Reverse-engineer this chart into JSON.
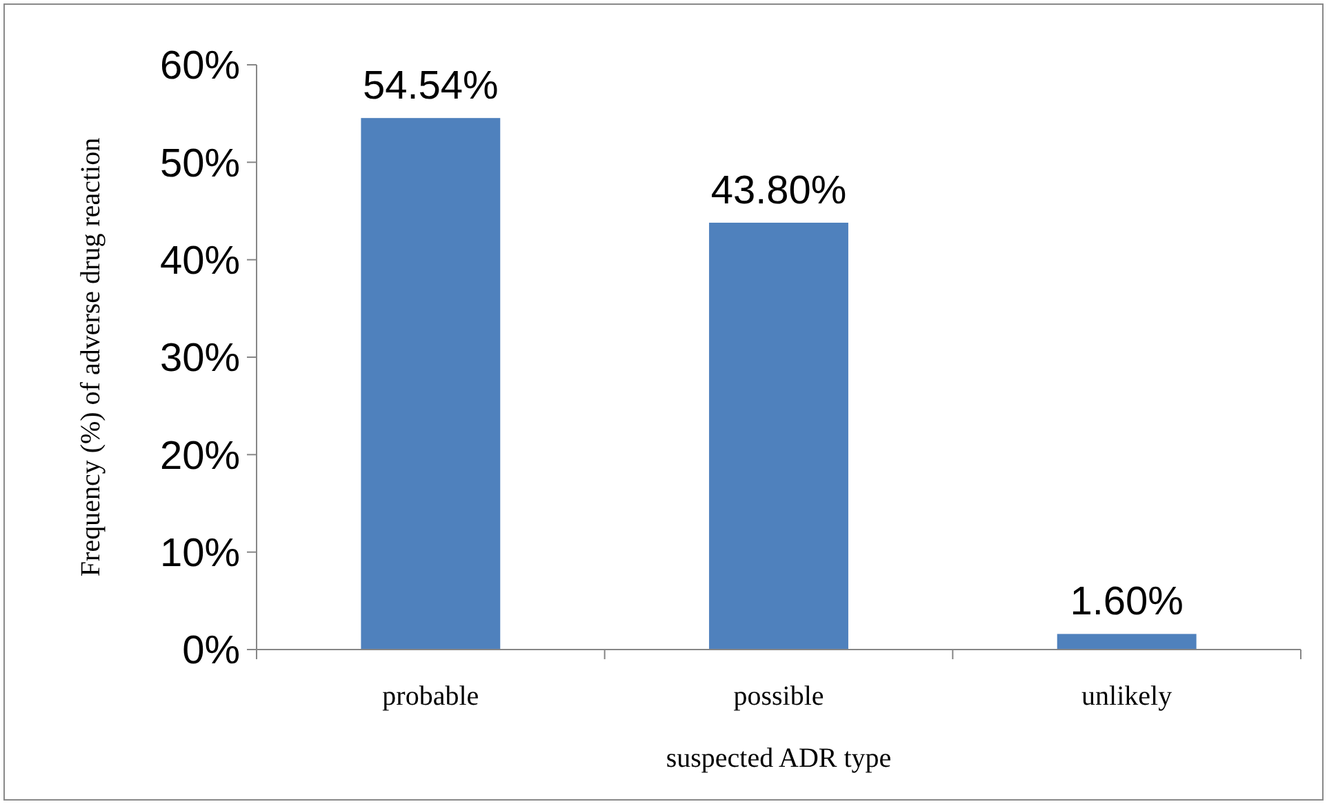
{
  "chart_data": {
    "type": "bar",
    "xlabel": "suspected ADR type",
    "ylabel": "Frequency (%) of adverse drug reaction",
    "categories": [
      "probable",
      "possible",
      "unlikely"
    ],
    "values": [
      54.54,
      43.8,
      1.6
    ],
    "value_labels": [
      "54.54%",
      "43.80%",
      "1.60%"
    ],
    "color": "#4f81bd",
    "ylim": [
      0,
      60
    ],
    "yticks": [
      {
        "value": 0,
        "label": "0%"
      },
      {
        "value": 10,
        "label": "10%"
      },
      {
        "value": 20,
        "label": "20%"
      },
      {
        "value": 30,
        "label": "30%"
      },
      {
        "value": 40,
        "label": "40%"
      },
      {
        "value": 50,
        "label": "50%"
      },
      {
        "value": 60,
        "label": "60%"
      }
    ],
    "grid": false
  }
}
